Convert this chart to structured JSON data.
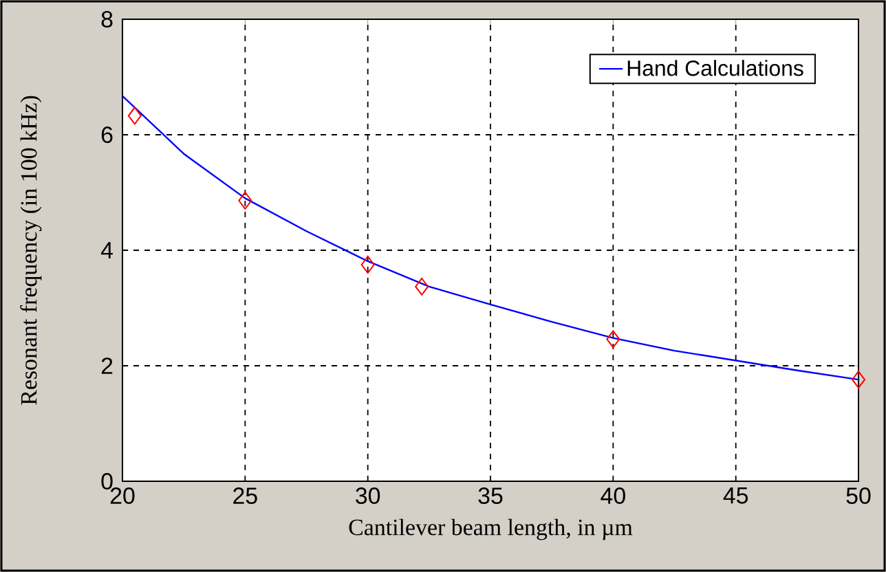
{
  "chart_data": {
    "type": "line",
    "xlabel": "Cantilever beam length, in µm",
    "ylabel": "Resonant frequency (in 100 kHz)",
    "xlim": [
      20,
      50
    ],
    "xticks": [
      20,
      25,
      30,
      35,
      40,
      45,
      50
    ],
    "ylim": [
      0,
      8
    ],
    "yticks": [
      0,
      2,
      4,
      6,
      8
    ],
    "grid": true,
    "legend": "top right",
    "series": [
      {
        "name": "Hand Calculations",
        "type": "line",
        "color": "#0000ff",
        "line_style": "solid",
        "marker": "none",
        "x": [
          20,
          22.5,
          25,
          27.5,
          30,
          32.5,
          35,
          37.5,
          40,
          42.5,
          45,
          47.5,
          50
        ],
        "values": [
          6.67,
          5.67,
          4.9,
          4.33,
          3.81,
          3.37,
          3.06,
          2.76,
          2.48,
          2.26,
          2.09,
          1.92,
          1.76
        ]
      },
      {
        "type": "scatter",
        "color": "#ff0000",
        "marker": "diamond",
        "x": [
          20.5,
          25,
          30,
          32.2,
          40,
          50
        ],
        "values": [
          6.33,
          4.86,
          3.75,
          3.37,
          2.46,
          1.76
        ]
      }
    ]
  }
}
